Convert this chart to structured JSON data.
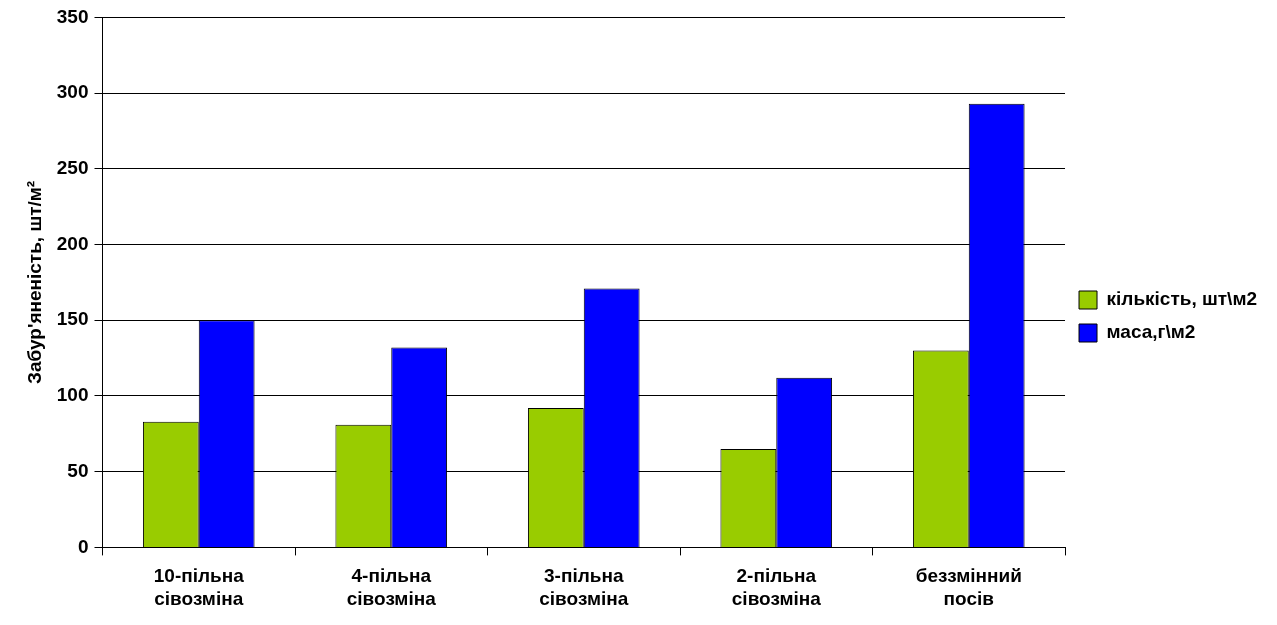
{
  "chart_data": {
    "type": "bar",
    "ylabel": "Забур'яненість, шт/м²",
    "categories": [
      "10-пільна сівозміна",
      "4-пільна сівозміна",
      "3-пільна сівозміна",
      "2-пільна сівозміна",
      "беззмінний посів"
    ],
    "series": [
      {
        "name": "кількість, шт\\м2",
        "color": "#99cc00",
        "values": [
          83,
          81,
          92,
          65,
          130
        ]
      },
      {
        "name": "маса,г\\м2",
        "color": "#0000ff",
        "values": [
          150,
          132,
          171,
          112,
          293
        ]
      }
    ],
    "ylim": [
      0,
      350
    ],
    "yticks": [
      0,
      50,
      100,
      150,
      200,
      250,
      300,
      350
    ],
    "grid": "y",
    "legend": "right"
  }
}
